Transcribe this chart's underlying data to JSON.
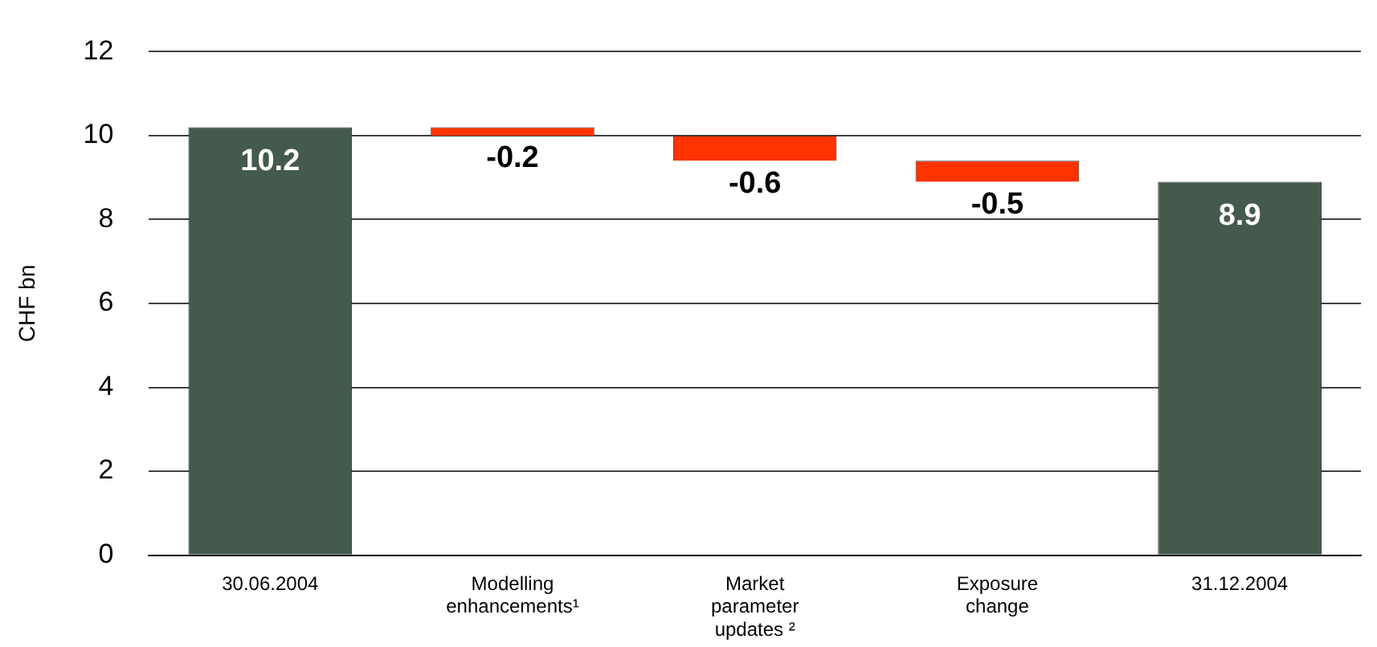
{
  "chart_data": {
    "type": "bar",
    "ylabel": "CHF bn",
    "categories": [
      "30.06.2004",
      "Modelling enhancements¹",
      "Market parameter updates ²",
      "Exposure change",
      "31.12.2004"
    ],
    "values": [
      10.2,
      -0.2,
      -0.6,
      -0.5,
      8.9
    ],
    "base": [
      0,
      10.2,
      10.0,
      9.4,
      0
    ],
    "colors": [
      "#435a4c",
      "#ff3300",
      "#ff3300",
      "#ff3300",
      "#435a4c"
    ],
    "ylim": [
      0,
      12
    ],
    "yticks": [
      0,
      2,
      4,
      6,
      8,
      10,
      12
    ],
    "grid": "y",
    "legend": false,
    "data_labels": true
  }
}
